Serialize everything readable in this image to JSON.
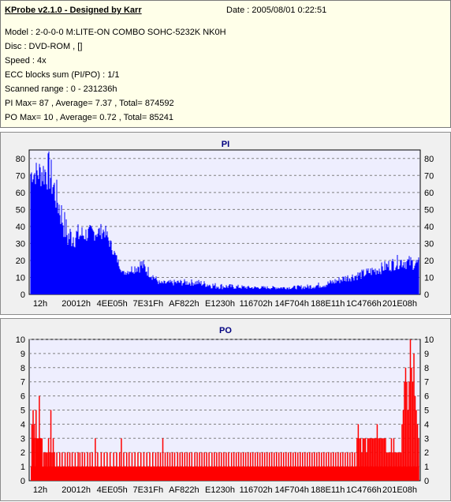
{
  "header": {
    "title": "KProbe v2.1.0 - Designed by Karr",
    "date": "Date : 2005/08/01 0:22:51",
    "lines": [
      "Model : 2-0-0-0 M:LITE-ON COMBO SOHC-5232K NK0H",
      "Disc : DVD-ROM ,  []",
      "Speed : 4x",
      "ECC blocks sum (PI/PO) : 1/1",
      "Scanned range : 0 - 231236h",
      "PI Max= 87 , Average= 7.37 , Total= 874592",
      "PO Max= 10 , Average= 0.72 , Total= 85241"
    ]
  },
  "colors": {
    "pi": "#0000ff",
    "po": "#ff0000",
    "title": "#000080",
    "plot_bg": "#eeeefe"
  },
  "chart_data": [
    {
      "type": "area",
      "title": "PI",
      "x_tick_labels": [
        "12h",
        "20012h",
        "4EE05h",
        "7E31Fh",
        "AF822h",
        "E1230h",
        "116702h",
        "14F704h",
        "188E11h",
        "1C4766h",
        "201E08h"
      ],
      "ylim": [
        0,
        85
      ],
      "y_ticks": [
        0,
        10,
        20,
        30,
        40,
        50,
        60,
        70,
        80
      ],
      "grid": true,
      "x": [
        0,
        0.5,
        1,
        1.5,
        2,
        2.5,
        3,
        3.5,
        4,
        4.5,
        5,
        5.5,
        6,
        6.5,
        7,
        7.5,
        8,
        8.5,
        9,
        9.5,
        10,
        10.5
      ],
      "max": [
        77,
        85,
        43,
        41,
        42,
        14,
        22,
        8,
        9,
        9,
        7,
        6,
        5,
        5,
        5,
        6,
        8,
        12,
        15,
        19,
        24,
        22
      ],
      "min": [
        65,
        60,
        25,
        30,
        33,
        11,
        13,
        5,
        5,
        5,
        3,
        3,
        3,
        3,
        3,
        3,
        4,
        7,
        9,
        12,
        15,
        14
      ]
    },
    {
      "type": "bar",
      "title": "PO",
      "x_tick_labels": [
        "12h",
        "20012h",
        "4EE05h",
        "7E31Fh",
        "AF822h",
        "E1230h",
        "116702h",
        "14F704h",
        "188E11h",
        "1C4766h",
        "201E08h"
      ],
      "ylim": [
        0,
        10
      ],
      "y_ticks": [
        0,
        1,
        2,
        3,
        4,
        5,
        6,
        7,
        8,
        9,
        10
      ],
      "grid": true,
      "baseline": 1,
      "spikes": [
        [
          0.1,
          4
        ],
        [
          0.2,
          3
        ],
        [
          0.3,
          5
        ],
        [
          0.4,
          3
        ],
        [
          0.5,
          4
        ],
        [
          0.7,
          3
        ],
        [
          0.8,
          5
        ],
        [
          0.9,
          3
        ],
        [
          1.0,
          3
        ],
        [
          1.1,
          2
        ],
        [
          1.2,
          3
        ],
        [
          1.35,
          6
        ],
        [
          1.5,
          3
        ],
        [
          1.6,
          3
        ],
        [
          1.7,
          2
        ],
        [
          1.8,
          3
        ],
        [
          2.1,
          2
        ],
        [
          2.3,
          2
        ],
        [
          2.5,
          2
        ],
        [
          2.7,
          2
        ],
        [
          2.9,
          3
        ],
        [
          3.1,
          2
        ],
        [
          3.3,
          5
        ],
        [
          3.5,
          2
        ],
        [
          3.7,
          3
        ],
        [
          3.9,
          2
        ],
        [
          4.3,
          2
        ],
        [
          4.8,
          2
        ],
        [
          5.2,
          2
        ],
        [
          5.7,
          2
        ],
        [
          6.1,
          2
        ],
        [
          6.5,
          2
        ],
        [
          6.9,
          2
        ],
        [
          7.4,
          2
        ],
        [
          7.9,
          2
        ],
        [
          8.2,
          2
        ],
        [
          8.6,
          2
        ],
        [
          9.0,
          2
        ],
        [
          9.5,
          2
        ],
        [
          9.9,
          2
        ],
        [
          10.3,
          2
        ],
        [
          10.8,
          3
        ],
        [
          11.2,
          2
        ],
        [
          11.8,
          2
        ],
        [
          12.3,
          2
        ],
        [
          12.8,
          2
        ],
        [
          13.3,
          2
        ],
        [
          13.9,
          2
        ],
        [
          14.4,
          2
        ],
        [
          14.9,
          2
        ],
        [
          15.2,
          3
        ],
        [
          15.6,
          2
        ],
        [
          16.1,
          2
        ],
        [
          16.5,
          2
        ],
        [
          17.0,
          2
        ],
        [
          17.5,
          2
        ],
        [
          18.0,
          2
        ],
        [
          18.5,
          2
        ],
        [
          19.0,
          2
        ],
        [
          19.5,
          2
        ],
        [
          20.0,
          2
        ],
        [
          20.5,
          2
        ],
        [
          21.0,
          2
        ],
        [
          21.4,
          2
        ],
        [
          21.8,
          2
        ],
        [
          22.2,
          3
        ],
        [
          22.6,
          2
        ],
        [
          23.0,
          2
        ],
        [
          23.4,
          2
        ],
        [
          23.8,
          2
        ],
        [
          24.2,
          2
        ],
        [
          24.7,
          2
        ],
        [
          25.1,
          2
        ],
        [
          25.5,
          2
        ],
        [
          25.9,
          2
        ],
        [
          26.3,
          2
        ],
        [
          26.7,
          2
        ],
        [
          27.1,
          2
        ],
        [
          27.6,
          2
        ],
        [
          28.0,
          2
        ],
        [
          28.4,
          2
        ],
        [
          28.8,
          2
        ],
        [
          29.2,
          2
        ],
        [
          29.6,
          2
        ],
        [
          30.0,
          2
        ],
        [
          30.5,
          2
        ],
        [
          30.9,
          2
        ],
        [
          31.3,
          2
        ],
        [
          31.7,
          2
        ],
        [
          32.1,
          2
        ],
        [
          32.5,
          2
        ],
        [
          32.9,
          2
        ],
        [
          33.3,
          2
        ],
        [
          33.8,
          2
        ],
        [
          34.2,
          2
        ],
        [
          34.6,
          2
        ],
        [
          35.0,
          2
        ],
        [
          35.4,
          2
        ],
        [
          35.8,
          2
        ],
        [
          36.2,
          2
        ],
        [
          36.6,
          2
        ],
        [
          37.0,
          2
        ],
        [
          37.4,
          2
        ],
        [
          37.8,
          2
        ],
        [
          38.2,
          2
        ],
        [
          38.6,
          2
        ],
        [
          39.0,
          2
        ],
        [
          39.4,
          2
        ],
        [
          39.8,
          2
        ],
        [
          40.2,
          2
        ],
        [
          40.6,
          2
        ],
        [
          41.0,
          2
        ],
        [
          41.4,
          2
        ],
        [
          41.8,
          2
        ],
        [
          42.2,
          2
        ],
        [
          42.6,
          2
        ],
        [
          43.0,
          2
        ],
        [
          43.4,
          2
        ],
        [
          43.8,
          2
        ],
        [
          44.2,
          2
        ],
        [
          44.6,
          2
        ],
        [
          45.0,
          2
        ],
        [
          45.4,
          2
        ],
        [
          45.8,
          2
        ],
        [
          46.2,
          2
        ],
        [
          46.6,
          2
        ],
        [
          47.0,
          2
        ],
        [
          47.4,
          2
        ],
        [
          47.8,
          2
        ],
        [
          48.2,
          2
        ],
        [
          48.6,
          2
        ],
        [
          49.0,
          2
        ],
        [
          49.4,
          2
        ],
        [
          49.8,
          2
        ],
        [
          50.2,
          2
        ],
        [
          50.6,
          2
        ],
        [
          51.0,
          2
        ],
        [
          51.4,
          2
        ],
        [
          51.8,
          2
        ],
        [
          52.2,
          2
        ],
        [
          52.6,
          2
        ],
        [
          53.0,
          2
        ],
        [
          53.4,
          2
        ],
        [
          53.8,
          2
        ],
        [
          54.2,
          2
        ],
        [
          54.6,
          2
        ],
        [
          55.0,
          3
        ],
        [
          55.2,
          4
        ],
        [
          55.4,
          3
        ],
        [
          55.6,
          3
        ],
        [
          55.8,
          2
        ],
        [
          56.0,
          3
        ],
        [
          56.2,
          3
        ],
        [
          56.4,
          3
        ],
        [
          56.6,
          2
        ],
        [
          56.8,
          3
        ],
        [
          57.0,
          3
        ],
        [
          57.2,
          3
        ],
        [
          57.4,
          3
        ],
        [
          57.6,
          3
        ],
        [
          57.8,
          3
        ],
        [
          58.0,
          3
        ],
        [
          58.2,
          3
        ],
        [
          58.4,
          4
        ],
        [
          58.6,
          3
        ],
        [
          58.8,
          3
        ],
        [
          59.0,
          3
        ],
        [
          59.2,
          3
        ],
        [
          59.4,
          3
        ],
        [
          59.6,
          3
        ],
        [
          59.8,
          3
        ],
        [
          60.0,
          2
        ],
        [
          60.2,
          2
        ],
        [
          60.4,
          2
        ],
        [
          60.6,
          2
        ],
        [
          60.8,
          3
        ],
        [
          61.0,
          2
        ],
        [
          61.2,
          3
        ],
        [
          61.4,
          2
        ],
        [
          61.6,
          2
        ],
        [
          61.8,
          2
        ],
        [
          62.0,
          2
        ],
        [
          62.2,
          2
        ],
        [
          62.4,
          2
        ],
        [
          62.6,
          4
        ],
        [
          62.8,
          5
        ],
        [
          63.0,
          7
        ],
        [
          63.2,
          8
        ],
        [
          63.4,
          7
        ],
        [
          63.6,
          5
        ],
        [
          63.8,
          7
        ],
        [
          64.0,
          10
        ],
        [
          64.2,
          8
        ],
        [
          64.4,
          7
        ],
        [
          64.6,
          9
        ],
        [
          64.8,
          6
        ],
        [
          65.0,
          5
        ],
        [
          65.2,
          4
        ],
        [
          65.4,
          3
        ]
      ]
    }
  ]
}
